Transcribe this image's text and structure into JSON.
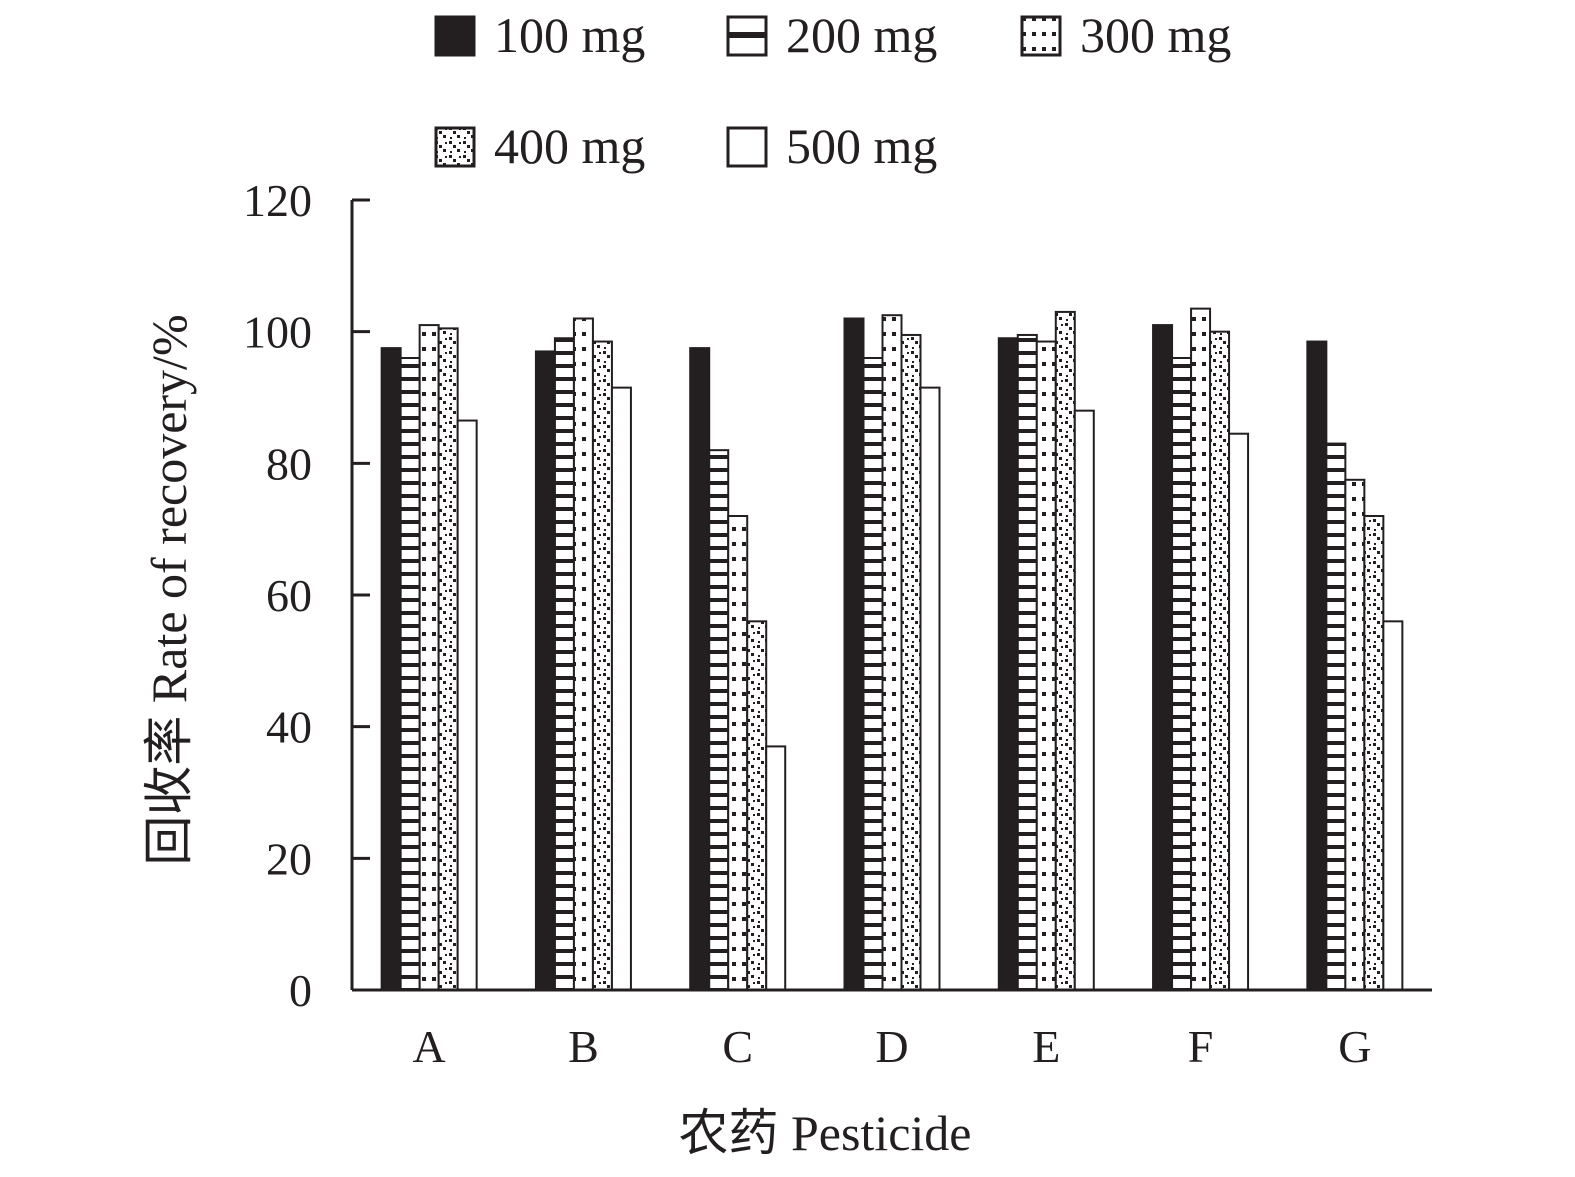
{
  "chart_data": {
    "type": "bar",
    "title": "",
    "xlabel": "农药 Pesticide",
    "ylabel": "回收率 Rate of recovery/%",
    "categories": [
      "A",
      "B",
      "C",
      "D",
      "E",
      "F",
      "G"
    ],
    "ylim": [
      0,
      120
    ],
    "yticks": [
      0,
      20,
      40,
      60,
      80,
      100,
      120
    ],
    "grid": false,
    "legend_position": "top",
    "series": [
      {
        "name": "100 mg",
        "pattern": "solid-black",
        "values": [
          97.5,
          97,
          97.5,
          102,
          99,
          101,
          98.5
        ]
      },
      {
        "name": "200 mg",
        "pattern": "horizontal-rungs",
        "values": [
          96,
          99,
          82,
          96,
          99.5,
          96,
          83
        ]
      },
      {
        "name": "300 mg",
        "pattern": "dots",
        "values": [
          101,
          102,
          72,
          102.5,
          98.5,
          103.5,
          77.5
        ]
      },
      {
        "name": "400 mg",
        "pattern": "dotted-diagonal",
        "values": [
          100.5,
          98.5,
          56,
          99.5,
          103,
          100,
          72
        ]
      },
      {
        "name": "500 mg",
        "pattern": "white",
        "values": [
          86.5,
          91.5,
          37,
          91.5,
          88,
          84.5,
          56
        ]
      }
    ]
  }
}
